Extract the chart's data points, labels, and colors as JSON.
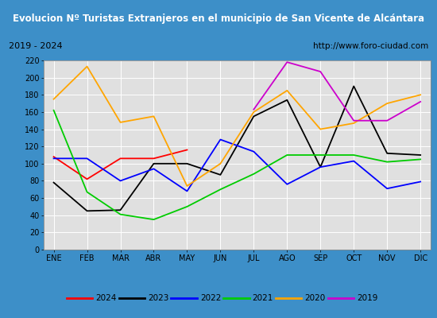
{
  "title": "Evolucion Nº Turistas Extranjeros en el municipio de San Vicente de Alcántara",
  "subtitle_left": "2019 - 2024",
  "subtitle_right": "http://www.foro-ciudad.com",
  "months": [
    "ENE",
    "FEB",
    "MAR",
    "ABR",
    "MAY",
    "JUN",
    "JUL",
    "AGO",
    "SEP",
    "OCT",
    "NOV",
    "DIC"
  ],
  "series": {
    "2024": {
      "color": "#ff0000",
      "data": [
        108,
        82,
        106,
        106,
        116,
        null,
        null,
        null,
        null,
        null,
        null,
        null
      ]
    },
    "2023": {
      "color": "#000000",
      "data": [
        78,
        45,
        46,
        100,
        100,
        87,
        155,
        174,
        96,
        190,
        112,
        110
      ]
    },
    "2022": {
      "color": "#0000ff",
      "data": [
        106,
        106,
        80,
        94,
        68,
        128,
        114,
        76,
        96,
        103,
        71,
        79
      ]
    },
    "2021": {
      "color": "#00cc00",
      "data": [
        162,
        67,
        41,
        35,
        50,
        70,
        88,
        110,
        110,
        110,
        102,
        105
      ]
    },
    "2020": {
      "color": "#ffa500",
      "data": [
        175,
        213,
        148,
        155,
        74,
        100,
        160,
        185,
        140,
        147,
        170,
        180
      ]
    },
    "2019": {
      "color": "#cc00cc",
      "data": [
        null,
        null,
        null,
        null,
        null,
        null,
        163,
        218,
        207,
        150,
        150,
        172
      ]
    }
  },
  "ylim": [
    0,
    220
  ],
  "yticks": [
    0,
    20,
    40,
    60,
    80,
    100,
    120,
    140,
    160,
    180,
    200,
    220
  ],
  "title_bg": "#3d8fc8",
  "title_color": "#ffffff",
  "subtitle_bg": "#d8d8d8",
  "plot_bg": "#e0e0e0",
  "grid_color": "#ffffff",
  "border_color": "#3d8fc8",
  "legend_order": [
    "2024",
    "2023",
    "2022",
    "2021",
    "2020",
    "2019"
  ]
}
